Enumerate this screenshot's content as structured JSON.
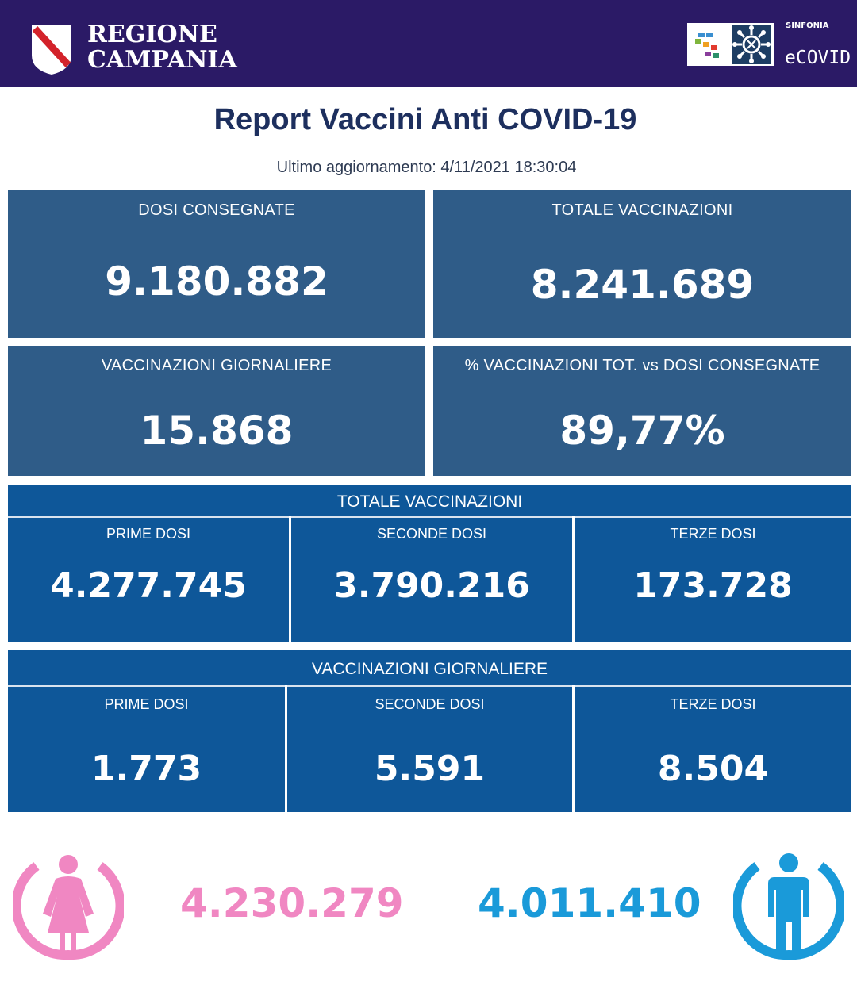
{
  "header": {
    "region_line1": "REGIONE",
    "region_line2": "CAMPANIA",
    "brand_small": "SINFONIA",
    "brand_name": "eCOVID"
  },
  "title": "Report Vaccini Anti COVID-19",
  "last_update": "Ultimo aggiornamento: 4/11/2021  18:30:04",
  "summary": [
    {
      "label": "DOSI  CONSEGNATE",
      "value": "9.180.882"
    },
    {
      "label": "TOTALE VACCINAZIONI",
      "value": "8.241.689"
    },
    {
      "label": "VACCINAZIONI GIORNALIERE",
      "value": "15.868"
    },
    {
      "label": "% VACCINAZIONI TOT. vs DOSI CONSEGNATE",
      "value": "89,77%"
    }
  ],
  "totale_vaccinazioni": {
    "title": "TOTALE VACCINAZIONI",
    "cells": [
      {
        "label": "PRIME DOSI",
        "value": "4.277.745"
      },
      {
        "label": "SECONDE DOSI",
        "value": "3.790.216"
      },
      {
        "label": "TERZE DOSI",
        "value": "173.728"
      }
    ]
  },
  "vaccinazioni_giornaliere": {
    "title": "VACCINAZIONI GIORNALIERE",
    "cells": [
      {
        "label": "PRIME DOSI",
        "value": "1.773"
      },
      {
        "label": "SECONDE DOSI",
        "value": "5.591"
      },
      {
        "label": "TERZE DOSI",
        "value": "8.504"
      }
    ]
  },
  "gender": {
    "female": {
      "value": "4.230.279",
      "icon": "female-icon",
      "color": "#f087c2"
    },
    "male": {
      "value": "4.011.410",
      "icon": "male-icon",
      "color": "#1a9ad9"
    }
  },
  "colors": {
    "header_bg": "#2b1a66",
    "card_bg": "#2f5c88",
    "band_bg": "#0e5799",
    "title": "#1d2f5e"
  }
}
